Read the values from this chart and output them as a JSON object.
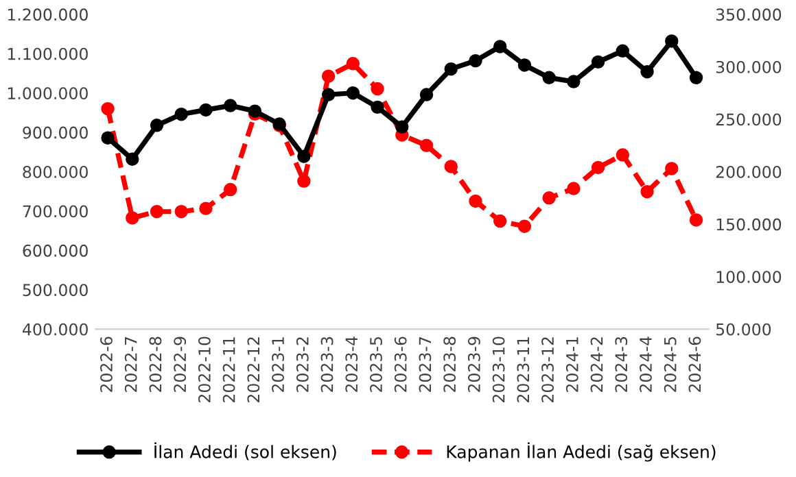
{
  "chart_data": {
    "type": "line",
    "categories": [
      "2022-6",
      "2022-7",
      "2022-8",
      "2022-9",
      "2022-10",
      "2022-11",
      "2022-12",
      "2023-1",
      "2023-2",
      "2023-3",
      "2023-4",
      "2023-5",
      "2023-6",
      "2023-7",
      "2023-8",
      "2023-9",
      "2023-10",
      "2023-11",
      "2023-12",
      "2024-1",
      "2024-2",
      "2024-3",
      "2024-4",
      "2024-5",
      "2024-6"
    ],
    "series": [
      {
        "name": "İlan Adedi (sol eksen)",
        "color": "#000000",
        "line_style": "solid",
        "values": [
          886000,
          832000,
          918000,
          946000,
          957000,
          968000,
          954000,
          921000,
          839000,
          996000,
          1000000,
          964000,
          914000,
          996000,
          1061000,
          1082000,
          1118000,
          1071000,
          1039000,
          1029000,
          1079000,
          1107000,
          1054000,
          1132000,
          1039000
        ]
      },
      {
        "name": "Kapanan İlan Adedi (sağ eksen)",
        "color": "#ff0000",
        "line_style": "dashed",
        "axis": "y2",
        "values": [
          260000,
          156000,
          162000,
          162000,
          165000,
          183000,
          255000,
          244000,
          191000,
          291000,
          303000,
          279000,
          235000,
          225000,
          205000,
          172000,
          153000,
          148000,
          175000,
          184000,
          204000,
          216000,
          181000,
          203000,
          154000
        ]
      }
    ],
    "ylim": [
      400000,
      1200000
    ],
    "yticks": [
      {
        "value": 400000,
        "label": "400.000"
      },
      {
        "value": 500000,
        "label": "500.000"
      },
      {
        "value": 600000,
        "label": "600.000"
      },
      {
        "value": 700000,
        "label": "700.000"
      },
      {
        "value": 800000,
        "label": "800.000"
      },
      {
        "value": 900000,
        "label": "900.000"
      },
      {
        "value": 1000000,
        "label": "1.000.000"
      },
      {
        "value": 1100000,
        "label": "1.100.000"
      },
      {
        "value": 1200000,
        "label": "1.200.000"
      }
    ],
    "y2lim": [
      50000,
      350000
    ],
    "y2ticks": [
      {
        "value": 50000,
        "label": "50.000"
      },
      {
        "value": 100000,
        "label": "100.000"
      },
      {
        "value": 150000,
        "label": "150.000"
      },
      {
        "value": 200000,
        "label": "200.000"
      },
      {
        "value": 250000,
        "label": "250.000"
      },
      {
        "value": 300000,
        "label": "300.000"
      },
      {
        "value": 350000,
        "label": "350.000"
      }
    ],
    "marker": "circle",
    "grid": false,
    "legend": "bottom"
  }
}
